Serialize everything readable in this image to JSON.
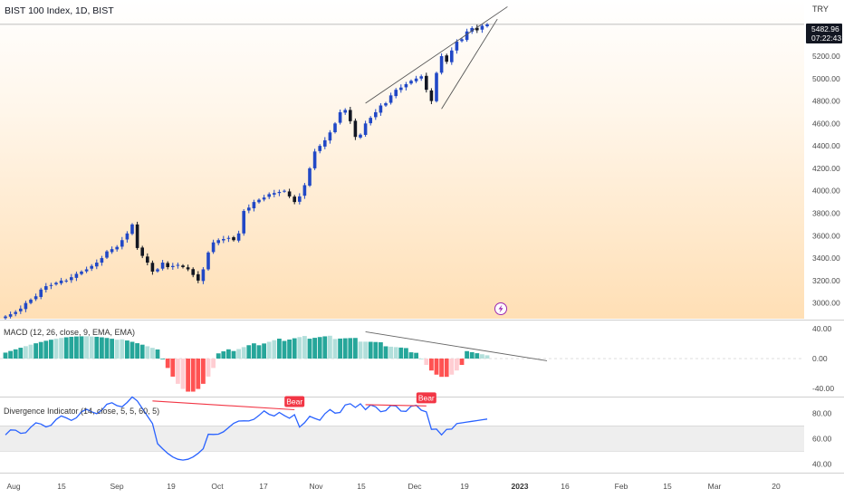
{
  "header": {
    "title": "BIST 100 Index, 1D, BIST",
    "currency": "TRY"
  },
  "colors": {
    "bull": "#2148c6",
    "bear": "#131722",
    "macd_up_strong": "#26a69a",
    "macd_up_weak": "#b2dfdb",
    "macd_down_strong": "#ff5252",
    "macd_down_weak": "#ffcdd2",
    "div_line": "#2962ff",
    "bear_label": "#f23645",
    "price_badge": "#131722"
  },
  "price_badge": {
    "value": "5482.96",
    "countdown": "07:22:43"
  },
  "chart_data": [
    {
      "type": "candlestick",
      "name": "BIST 100 Index",
      "ylim": [
        2860,
        5700
      ],
      "y_ticks": [
        "5200.00",
        "5000.00",
        "4800.00",
        "4600.00",
        "4400.00",
        "4200.00",
        "4000.00",
        "3800.00",
        "3600.00",
        "3400.00",
        "3200.00",
        "3000.00"
      ],
      "x_ticks": [
        "Aug",
        "15",
        "Sep",
        "19",
        "Oct",
        "17",
        "Nov",
        "15",
        "Dec",
        "19",
        "2023",
        "16",
        "Feb",
        "15",
        "Mar",
        "20"
      ],
      "closes": [
        2880,
        2900,
        2920,
        2950,
        3000,
        3030,
        3060,
        3120,
        3150,
        3160,
        3180,
        3200,
        3200,
        3230,
        3260,
        3280,
        3300,
        3330,
        3360,
        3400,
        3460,
        3480,
        3500,
        3560,
        3620,
        3700,
        3490,
        3420,
        3360,
        3280,
        3300,
        3360,
        3320,
        3330,
        3340,
        3320,
        3300,
        3250,
        3200,
        3300,
        3450,
        3540,
        3560,
        3570,
        3580,
        3560,
        3620,
        3820,
        3850,
        3900,
        3920,
        3940,
        3970,
        3980,
        3990,
        4000,
        3950,
        3900,
        3950,
        4050,
        4200,
        4350,
        4400,
        4450,
        4520,
        4600,
        4700,
        4720,
        4620,
        4480,
        4500,
        4600,
        4650,
        4700,
        4760,
        4780,
        4850,
        4900,
        4920,
        4950,
        4980,
        5000,
        5020,
        4900,
        4800,
        5050,
        5200,
        5150,
        5250,
        5330,
        5350,
        5420,
        5450,
        5430,
        5470,
        5482.96
      ],
      "annotations": [
        "rising wedge: upper trendline",
        "rising wedge: lower trendline",
        "horizontal line at last close"
      ]
    },
    {
      "type": "histogram",
      "name": "MACD (12, 26, close, 9, EMA, EMA)",
      "ylim": [
        -50,
        50
      ],
      "y_ticks": [
        "40.00",
        "0.00",
        "-40.00"
      ],
      "annotations": [
        "declining trendline across histogram peaks"
      ]
    },
    {
      "type": "line",
      "name": "Divergence Indicator (14, close, 5, 5, 60, 5)",
      "ylim": [
        33,
        92
      ],
      "y_ticks": [
        "80.00",
        "60.00",
        "40.00"
      ],
      "band": [
        50,
        70
      ],
      "labels": [
        "Bear",
        "Bear"
      ]
    }
  ]
}
